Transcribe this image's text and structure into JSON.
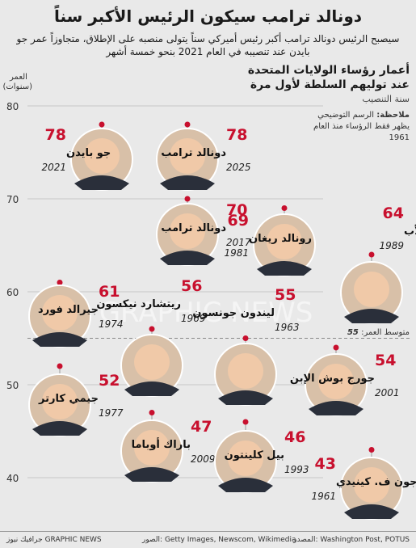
{
  "title": "دونالد ترامب سيكون الرئيس الأكبر سناً",
  "subtitle": "سيصبح الرئيس دونالد ترامب أكبر رئيس أميركي سناً يتولى منصبه على الإطلاق، متجاوزاً عمر جو بايدن عند تنصيبه في العام 2021 بنحو خمسة أشهر",
  "heading_line1": "أعمار رؤساء الولايات المتحدة",
  "heading_line2": "عند توليهم السلطة لأول مرة",
  "year_note": "سنة التنصيب",
  "note_label": "ملاحظة:",
  "note_text": "الرسم التوضيحي يظهر فقط الرؤساء منذ العام 1961",
  "average_label": "متوسط العمر:",
  "average_value": "55",
  "watermark": "GRAPHIC NEWS",
  "footer": {
    "source": "المصدر: Washington Post, POTUS",
    "photos": "الصور: Getty Images, Newscom, Wikimedia",
    "credit": "جرافيك نيوز GRAPHIC NEWS"
  },
  "colors": {
    "age": "#c8102e",
    "average_line": "#888888",
    "background": "#e9e9e9"
  },
  "chart_data": {
    "type": "scatter",
    "ylabel": "العمر (سنوات)",
    "ylim": [
      37,
      82
    ],
    "yticks": [
      "80",
      "70",
      "60",
      "50",
      "40"
    ],
    "average": 55,
    "grid": true,
    "points": [
      {
        "name": "دونالد ترامب",
        "year": "2025",
        "age": 78
      },
      {
        "name": "جو بايدن",
        "year": "2021",
        "age": 78
      },
      {
        "name": "دونالد ترامب",
        "year": "2017",
        "age": 70
      },
      {
        "name": "رونالد ريغان",
        "year": "1981",
        "age": 69
      },
      {
        "name": "جورج بوش الأب",
        "year": "1989",
        "age": 64
      },
      {
        "name": "جيرالد فورد",
        "year": "1974",
        "age": 61
      },
      {
        "name": "ريتشارد نيكسون",
        "year": "1969",
        "age": 56
      },
      {
        "name": "ليندون جونسون",
        "year": "1963",
        "age": 55
      },
      {
        "name": "جورج بوش الإبن",
        "year": "2001",
        "age": 54
      },
      {
        "name": "جيمي كارتر",
        "year": "1977",
        "age": 52
      },
      {
        "name": "باراك أوباما",
        "year": "2009",
        "age": 47
      },
      {
        "name": "بيل كلينتون",
        "year": "1993",
        "age": 46
      },
      {
        "name": "جون ف. كينيدي",
        "year": "1961",
        "age": 43
      }
    ]
  }
}
